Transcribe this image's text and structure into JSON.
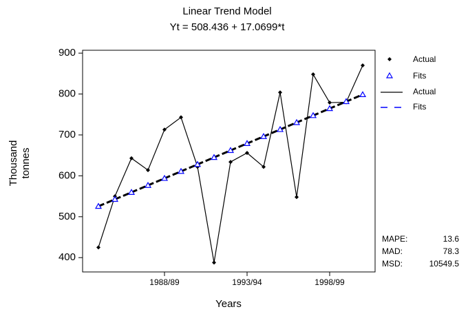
{
  "chart_data": {
    "type": "trend",
    "title": "Linear Trend Model",
    "subtitle": "Yt = 508.436 + 17.0699*t",
    "xlabel": "Years",
    "ylabel": [
      "Thousand",
      "tonnes"
    ],
    "categories": [
      null,
      null,
      null,
      null,
      "1988/89",
      null,
      null,
      null,
      null,
      "1993/94",
      null,
      null,
      null,
      null,
      "1998/99",
      null,
      null
    ],
    "series": [
      {
        "name": "Actual",
        "color": "#000000",
        "values": [
          425,
          550,
          643,
          614,
          713,
          743,
          622,
          388,
          634,
          656,
          622,
          804,
          548,
          848,
          779,
          780,
          870
        ]
      },
      {
        "name": "Fits",
        "color": "#0000ff",
        "line_color": "#000000",
        "values": [
          525.5,
          542.6,
          559.6,
          576.7,
          593.8,
          610.9,
          627.9,
          645.0,
          662.1,
          679.1,
          696.2,
          713.3,
          730.3,
          747.4,
          764.5,
          781.6,
          798.6
        ]
      }
    ],
    "ylim": [
      365,
      907
    ],
    "yticks": [
      400,
      500,
      600,
      700,
      800,
      900
    ],
    "accuracy_measures": [
      {
        "label": "MAPE:",
        "value": 13.6
      },
      {
        "label": "MAD:",
        "value": 78.3
      },
      {
        "label": "MSD:",
        "value": 10549.5
      }
    ]
  }
}
